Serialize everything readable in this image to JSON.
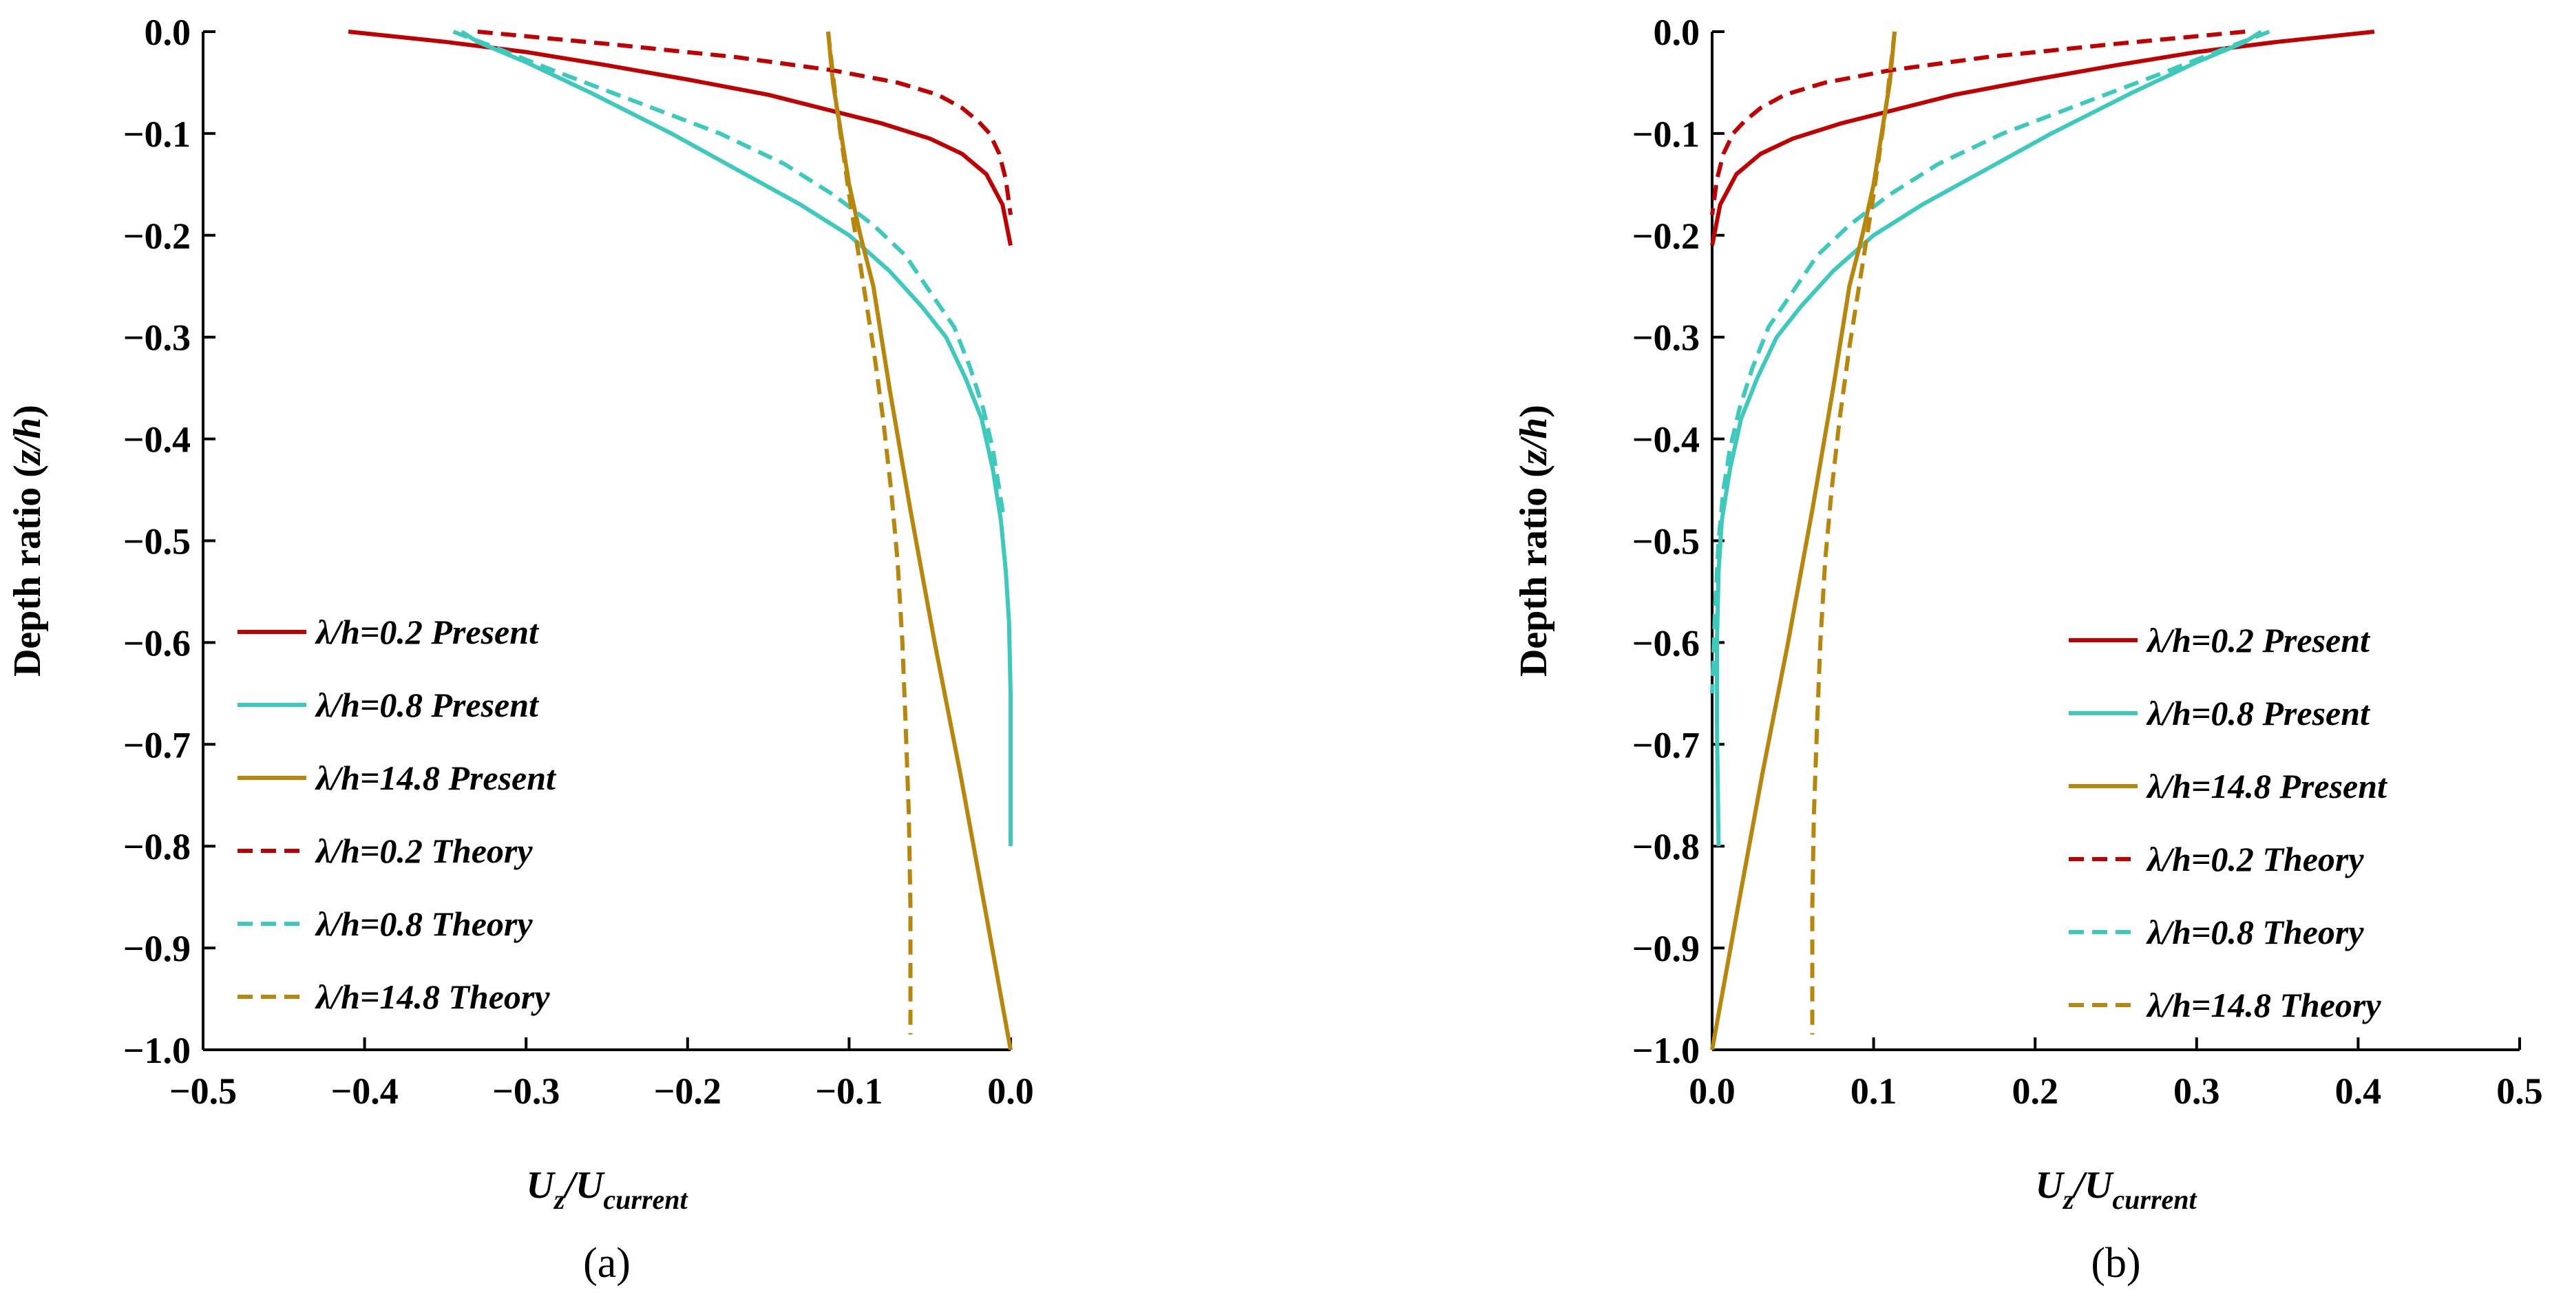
{
  "chart_data": [
    {
      "type": "line",
      "panel_label": "(a)",
      "ylabel_main": "Depth ratio (",
      "ylabel_var": "z/h",
      "ylabel_close": ")",
      "xlabel_main": "U",
      "xlabel_sub1": "z",
      "xlabel_slash": "/U",
      "xlabel_sub2": "current",
      "xlim": [
        -0.5,
        0.0
      ],
      "ylim": [
        -1.0,
        0.0
      ],
      "xticks": [
        "−0.5",
        "−0.4",
        "−0.3",
        "−0.2",
        "−0.1",
        "0.0"
      ],
      "xtick_values": [
        -0.5,
        -0.4,
        -0.3,
        -0.2,
        -0.1,
        0.0
      ],
      "yticks": [
        "0.0",
        "−0.1",
        "−0.2",
        "−0.3",
        "−0.4",
        "−0.5",
        "−0.6",
        "−0.7",
        "−0.8",
        "−0.9",
        "−1.0"
      ],
      "ytick_values": [
        0.0,
        -0.1,
        -0.2,
        -0.3,
        -0.4,
        -0.5,
        -0.6,
        -0.7,
        -0.8,
        -0.9,
        -1.0
      ],
      "legend_position": "left",
      "series": [
        {
          "name": "λ/h=0.2 Present",
          "color": "#c00000",
          "dash": "solid",
          "key": "s02p",
          "x": [
            -0.41,
            -0.35,
            -0.3,
            -0.25,
            -0.2,
            -0.15,
            -0.11,
            -0.08,
            -0.05,
            -0.03,
            -0.015,
            -0.005,
            0.0
          ],
          "y": [
            0.0,
            -0.01,
            -0.02,
            -0.033,
            -0.047,
            -0.062,
            -0.078,
            -0.09,
            -0.105,
            -0.12,
            -0.14,
            -0.17,
            -0.21
          ]
        },
        {
          "name": "λ/h=0.8 Present",
          "color": "#3ec9bd",
          "dash": "solid",
          "key": "s08p",
          "x": [
            -0.34,
            -0.33,
            -0.3,
            -0.26,
            -0.21,
            -0.17,
            -0.13,
            -0.1,
            -0.075,
            -0.055,
            -0.04,
            -0.028,
            -0.018,
            -0.011,
            -0.006,
            -0.003,
            -0.001,
            0.0,
            0.0
          ],
          "y": [
            0.0,
            -0.01,
            -0.03,
            -0.06,
            -0.1,
            -0.135,
            -0.17,
            -0.2,
            -0.235,
            -0.27,
            -0.3,
            -0.34,
            -0.38,
            -0.43,
            -0.48,
            -0.53,
            -0.58,
            -0.65,
            -0.8
          ]
        },
        {
          "name": "λ/h=14.8 Present",
          "color": "#b8860b",
          "dash": "solid",
          "key": "s148p",
          "x": [
            -0.113,
            -0.11,
            -0.105,
            -0.1,
            -0.093,
            -0.085,
            -0.075,
            -0.062,
            -0.047,
            -0.031,
            -0.016,
            0.0
          ],
          "y": [
            0.0,
            -0.05,
            -0.1,
            -0.15,
            -0.2,
            -0.25,
            -0.35,
            -0.47,
            -0.6,
            -0.73,
            -0.86,
            -1.0
          ]
        },
        {
          "name": "λ/h=0.2 Theory",
          "color": "#c00000",
          "dash": "dashed",
          "key": "s02t",
          "x": [
            -0.33,
            -0.25,
            -0.17,
            -0.11,
            -0.07,
            -0.045,
            -0.03,
            -0.02,
            -0.013,
            -0.007,
            -0.003,
            0.0
          ],
          "y": [
            0.0,
            -0.012,
            -0.025,
            -0.038,
            -0.05,
            -0.062,
            -0.075,
            -0.088,
            -0.1,
            -0.12,
            -0.145,
            -0.18
          ]
        },
        {
          "name": "λ/h=0.8 Theory",
          "color": "#3ec9bd",
          "dash": "dashed",
          "key": "s08t",
          "x": [
            -0.345,
            -0.32,
            -0.28,
            -0.23,
            -0.18,
            -0.14,
            -0.11,
            -0.085,
            -0.065,
            -0.048,
            -0.035,
            -0.025,
            -0.017,
            -0.011,
            -0.007,
            -0.004
          ],
          "y": [
            0.0,
            -0.015,
            -0.04,
            -0.07,
            -0.1,
            -0.13,
            -0.16,
            -0.19,
            -0.22,
            -0.26,
            -0.29,
            -0.33,
            -0.37,
            -0.41,
            -0.45,
            -0.48
          ]
        },
        {
          "name": "λ/h=14.8 Theory",
          "color": "#b8860b",
          "dash": "dashed",
          "key": "s148t",
          "x": [
            -0.113,
            -0.108,
            -0.1,
            -0.092,
            -0.085,
            -0.079,
            -0.074,
            -0.07,
            -0.067,
            -0.065,
            -0.063,
            -0.062,
            -0.062
          ],
          "y": [
            0.0,
            -0.07,
            -0.16,
            -0.24,
            -0.31,
            -0.38,
            -0.45,
            -0.52,
            -0.6,
            -0.68,
            -0.77,
            -0.86,
            -0.985
          ]
        }
      ]
    },
    {
      "type": "line",
      "panel_label": "(b)",
      "ylabel_main": "Depth ratio (",
      "ylabel_var": "z/h",
      "ylabel_close": ")",
      "xlabel_main": "U",
      "xlabel_sub1": "z",
      "xlabel_slash": "/U",
      "xlabel_sub2": "current",
      "xlim": [
        0.0,
        0.5
      ],
      "ylim": [
        -1.0,
        0.0
      ],
      "xticks": [
        "0.0",
        "0.1",
        "0.2",
        "0.3",
        "0.4",
        "0.5"
      ],
      "xtick_values": [
        0.0,
        0.1,
        0.2,
        0.3,
        0.4,
        0.5
      ],
      "yticks": [
        "0.0",
        "−0.1",
        "−0.2",
        "−0.3",
        "−0.4",
        "−0.5",
        "−0.6",
        "−0.7",
        "−0.8",
        "−0.9",
        "−1.0"
      ],
      "ytick_values": [
        0.0,
        -0.1,
        -0.2,
        -0.3,
        -0.4,
        -0.5,
        -0.6,
        -0.7,
        -0.8,
        -0.9,
        -1.0
      ],
      "legend_position": "bottom-right",
      "series": [
        {
          "name": "λ/h=0.2 Present",
          "color": "#c00000",
          "dash": "solid",
          "key": "s02p",
          "x": [
            0.41,
            0.35,
            0.3,
            0.25,
            0.2,
            0.15,
            0.11,
            0.08,
            0.05,
            0.03,
            0.015,
            0.005,
            0.0
          ],
          "y": [
            0.0,
            -0.01,
            -0.02,
            -0.033,
            -0.047,
            -0.062,
            -0.078,
            -0.09,
            -0.105,
            -0.12,
            -0.14,
            -0.17,
            -0.21
          ]
        },
        {
          "name": "λ/h=0.8 Present",
          "color": "#3ec9bd",
          "dash": "solid",
          "key": "s08p",
          "x": [
            0.34,
            0.33,
            0.3,
            0.26,
            0.21,
            0.17,
            0.13,
            0.1,
            0.075,
            0.055,
            0.04,
            0.028,
            0.018,
            0.011,
            0.006,
            0.004,
            0.003,
            0.003,
            0.004
          ],
          "y": [
            0.0,
            -0.01,
            -0.03,
            -0.06,
            -0.1,
            -0.135,
            -0.17,
            -0.2,
            -0.235,
            -0.27,
            -0.3,
            -0.34,
            -0.38,
            -0.43,
            -0.48,
            -0.53,
            -0.6,
            -0.68,
            -0.8
          ]
        },
        {
          "name": "λ/h=14.8 Present",
          "color": "#b8860b",
          "dash": "solid",
          "key": "s148p",
          "x": [
            0.113,
            0.11,
            0.105,
            0.1,
            0.093,
            0.085,
            0.075,
            0.062,
            0.047,
            0.031,
            0.016,
            0.0
          ],
          "y": [
            0.0,
            -0.05,
            -0.1,
            -0.15,
            -0.2,
            -0.25,
            -0.35,
            -0.47,
            -0.6,
            -0.73,
            -0.86,
            -1.0
          ]
        },
        {
          "name": "λ/h=0.2 Theory",
          "color": "#c00000",
          "dash": "dashed",
          "key": "s02t",
          "x": [
            0.33,
            0.25,
            0.17,
            0.11,
            0.07,
            0.045,
            0.03,
            0.02,
            0.013,
            0.007,
            0.003,
            0.0
          ],
          "y": [
            0.0,
            -0.012,
            -0.025,
            -0.038,
            -0.05,
            -0.062,
            -0.075,
            -0.088,
            -0.1,
            -0.12,
            -0.145,
            -0.18
          ]
        },
        {
          "name": "λ/h=0.8 Theory",
          "color": "#3ec9bd",
          "dash": "dashed",
          "key": "s08t",
          "x": [
            0.345,
            0.32,
            0.28,
            0.23,
            0.18,
            0.14,
            0.11,
            0.085,
            0.065,
            0.048,
            0.035,
            0.025,
            0.017,
            0.011,
            0.007,
            0.004,
            0.002,
            0.0
          ],
          "y": [
            0.0,
            -0.015,
            -0.04,
            -0.07,
            -0.1,
            -0.13,
            -0.16,
            -0.19,
            -0.22,
            -0.26,
            -0.29,
            -0.33,
            -0.37,
            -0.41,
            -0.45,
            -0.5,
            -0.56,
            -0.65
          ]
        },
        {
          "name": "λ/h=14.8 Theory",
          "color": "#b8860b",
          "dash": "dashed",
          "key": "s148t",
          "x": [
            0.113,
            0.108,
            0.1,
            0.092,
            0.085,
            0.079,
            0.074,
            0.07,
            0.067,
            0.065,
            0.063,
            0.062,
            0.062
          ],
          "y": [
            0.0,
            -0.07,
            -0.16,
            -0.24,
            -0.31,
            -0.38,
            -0.45,
            -0.52,
            -0.6,
            -0.68,
            -0.77,
            -0.86,
            -0.985
          ]
        }
      ]
    }
  ]
}
